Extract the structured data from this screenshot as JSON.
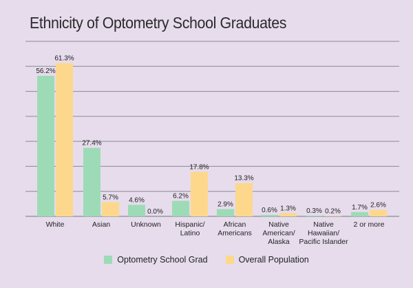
{
  "colors": {
    "background": "#e6dcec",
    "gridline": "#8a8a90",
    "series_grad": "#9ddbb7",
    "series_pop": "#fdd88c"
  },
  "chart_data": {
    "type": "bar",
    "title": "Ethnicity of Optometry School Graduates",
    "xlabel": "",
    "ylabel": "",
    "ylim": [
      0,
      70
    ],
    "grid": true,
    "legend_position": "bottom",
    "categories": [
      "White",
      "Asian",
      "Unknown",
      "Hispanic/\nLatino",
      "African\nAmericans",
      "Native\nAmerican/\nAlaska",
      "Native\nHawaiian/\nPacific Islander",
      "2 or more"
    ],
    "series": [
      {
        "name": "Optometry School Grad",
        "color": "#9ddbb7",
        "values": [
          56.2,
          27.4,
          4.6,
          6.2,
          2.9,
          0.6,
          0.3,
          1.7
        ],
        "labels": [
          "56.2%",
          "27.4%",
          "4.6%",
          "6.2%",
          "2.9%",
          "0.6%",
          "0.3%",
          "1.7%"
        ]
      },
      {
        "name": "Overall Population",
        "color": "#fdd88c",
        "values": [
          61.3,
          5.7,
          0.0,
          17.8,
          13.3,
          1.3,
          0.2,
          2.6
        ],
        "labels": [
          "61.3%",
          "5.7%",
          "0.0%",
          "17.8%",
          "13.3%",
          "1.3%",
          "0.2%",
          "2.6%"
        ]
      }
    ]
  }
}
